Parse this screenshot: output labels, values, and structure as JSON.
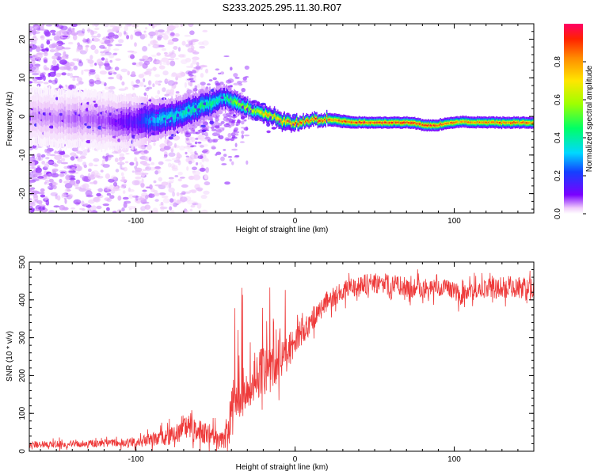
{
  "chart_data": [
    {
      "type": "heatmap",
      "title": "S233.2025.295.11.30.R07",
      "xlabel": "Height of straight line (km)",
      "ylabel": "Frequency (Hz)",
      "xlim": [
        -167,
        150
      ],
      "ylim": [
        -25,
        24
      ],
      "xticks": [
        -100,
        0,
        100
      ],
      "yticks": [
        -20,
        -10,
        0,
        10,
        20
      ],
      "colorbar": {
        "label": "Normalized spectral amplitude",
        "range": [
          0,
          1
        ],
        "ticks": [
          "0.0",
          "0.2",
          "0.4",
          "0.6",
          "0.8"
        ],
        "tick_values": [
          0,
          0.2,
          0.4,
          0.6,
          0.8
        ]
      },
      "ridge": {
        "x": [
          -167,
          -120,
          -100,
          -90,
          -80,
          -70,
          -60,
          -50,
          -45,
          -40,
          -35,
          -30,
          -25,
          -20,
          -15,
          -10,
          -5,
          0,
          5,
          10,
          15,
          20,
          25,
          30,
          40,
          50,
          60,
          70,
          75,
          80,
          85,
          90,
          95,
          100,
          105,
          110,
          120,
          130,
          140,
          150
        ],
        "freq": [
          0,
          -1,
          -1.5,
          -1,
          -0.5,
          1,
          2.5,
          4,
          5,
          4,
          3,
          2,
          1.5,
          0.5,
          0.2,
          -1,
          -1.5,
          -1.6,
          -1,
          -0.8,
          -0.8,
          -0.9,
          -1,
          -1.3,
          -1.6,
          -1.6,
          -1.6,
          -1.6,
          -1.7,
          -2.2,
          -2.4,
          -2.3,
          -1.8,
          -1.6,
          -1.3,
          -1.5,
          -1.6,
          -1.6,
          -1.6,
          -1.6
        ],
        "amplitude": [
          0.05,
          0.08,
          0.15,
          0.3,
          0.38,
          0.4,
          0.45,
          0.45,
          0.4,
          0.5,
          0.6,
          0.65,
          0.7,
          0.75,
          0.78,
          0.8,
          0.85,
          0.9,
          0.92,
          0.95,
          0.95,
          0.92,
          0.9,
          0.88,
          0.95,
          0.95,
          0.95,
          0.93,
          0.9,
          0.95,
          0.95,
          0.93,
          0.88,
          0.85,
          0.8,
          0.85,
          0.88,
          0.88,
          0.88,
          0.88
        ],
        "halfwidth": [
          4,
          4,
          3.5,
          3,
          2.5,
          2.5,
          2.2,
          2,
          1.8,
          1.6,
          1.5,
          1.3,
          1.2,
          1.2,
          1.1,
          1.2,
          1.1,
          1,
          0.9,
          0.9,
          0.9,
          0.9,
          0.9,
          0.9,
          0.8,
          0.8,
          0.8,
          0.8,
          0.8,
          0.8,
          0.8,
          0.8,
          0.8,
          0.8,
          0.8,
          0.8,
          0.8,
          0.8,
          0.8,
          0.8
        ]
      },
      "noise": {
        "x_range": [
          -167,
          -55
        ],
        "freq_range": [
          -25,
          24
        ]
      }
    },
    {
      "type": "line",
      "xlabel": "Height of straight line (km)",
      "ylabel": "SNR (10 * v/v)",
      "xlim": [
        -167,
        150
      ],
      "ylim": [
        0,
        500
      ],
      "xticks": [
        -100,
        0,
        100
      ],
      "yticks": [
        0,
        100,
        200,
        300,
        400,
        500
      ],
      "line_color": "#ee3a3a",
      "trend": {
        "x": [
          -167,
          -120,
          -100,
          -85,
          -75,
          -68,
          -60,
          -52,
          -46,
          -42,
          -40,
          -37,
          -34,
          -30,
          -25,
          -20,
          -15,
          -10,
          -5,
          0,
          5,
          10,
          15,
          20,
          25,
          30,
          40,
          50,
          60,
          70,
          80,
          90,
          100,
          104,
          110,
          120,
          130,
          140,
          150
        ],
        "snr": [
          18,
          20,
          25,
          35,
          45,
          60,
          50,
          45,
          30,
          40,
          120,
          140,
          160,
          180,
          200,
          210,
          220,
          240,
          260,
          300,
          320,
          345,
          370,
          395,
          410,
          425,
          440,
          445,
          440,
          435,
          430,
          430,
          425,
          410,
          420,
          430,
          435,
          430,
          425
        ],
        "spread": [
          10,
          10,
          14,
          22,
          30,
          35,
          35,
          30,
          25,
          45,
          80,
          80,
          75,
          75,
          75,
          75,
          70,
          65,
          60,
          50,
          40,
          35,
          32,
          30,
          28,
          28,
          30,
          30,
          30,
          30,
          28,
          28,
          28,
          26,
          28,
          30,
          32,
          35,
          35
        ]
      }
    }
  ]
}
